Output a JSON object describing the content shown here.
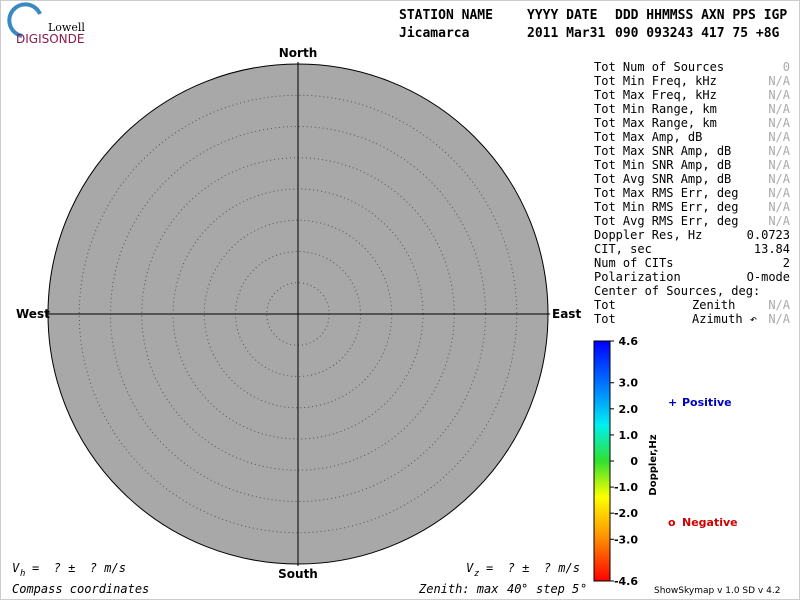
{
  "logo": {
    "top": "Lowell",
    "bottom": "DIGISONDE"
  },
  "header": {
    "columns": [
      "STATION NAME",
      "YYYY DATE",
      "DDD HHMMSS AXN PPS IGP"
    ],
    "values": [
      "Jicamarca",
      "2011 Mar31",
      "090 093243 417  75 +8G"
    ]
  },
  "directions": {
    "north": "North",
    "south": "South",
    "east": "East",
    "west": "West"
  },
  "zenith": {
    "label": "Zenith: max",
    "max": 40,
    "unit": "°",
    "step_label": "step",
    "step": 5
  },
  "stats": [
    [
      "Tot Num of Sources",
      "0"
    ],
    [
      "Tot Min Freq, kHz",
      "N/A"
    ],
    [
      "Tot Max Freq, kHz",
      "N/A"
    ],
    [
      "Tot Min Range, km",
      "N/A"
    ],
    [
      "Tot Max Range, km",
      "N/A"
    ],
    [
      "Tot Max Amp, dB",
      "N/A"
    ],
    [
      "Tot Max SNR Amp, dB",
      "N/A"
    ],
    [
      "Tot Min SNR Amp, dB",
      "N/A"
    ],
    [
      "Tot Avg SNR Amp, dB",
      "N/A"
    ],
    [
      "Tot Max RMS Err, deg",
      "N/A"
    ],
    [
      "Tot Min RMS Err, deg",
      "N/A"
    ],
    [
      "Tot Avg RMS Err, deg",
      "N/A"
    ],
    [
      "Doppler Res, Hz",
      "0.0723"
    ],
    [
      "CIT, sec",
      "13.84"
    ],
    [
      "Num of CITs",
      "2"
    ],
    [
      "Polarization",
      "O-mode"
    ]
  ],
  "center": {
    "title": "Center of Sources, deg:",
    "rows": [
      [
        "Tot",
        "Zenith",
        "N/A"
      ],
      [
        "Tot",
        "Azimuth ↶",
        "N/A"
      ]
    ]
  },
  "colorbar": {
    "label": "Doppler,Hz",
    "lim": [
      -4.6,
      4.6
    ],
    "ticks": [
      4.6,
      {
        "value": 3,
        "label": "3.0"
      },
      {
        "value": 2,
        "label": "2.0"
      },
      {
        "value": 1,
        "label": "1.0"
      },
      0,
      {
        "value": -1,
        "label": "-1.0"
      },
      {
        "value": -2,
        "label": "-2.0"
      },
      {
        "value": -3,
        "label": "-3.0"
      },
      -4.6
    ]
  },
  "legend": {
    "positive": {
      "symbol": "+",
      "text": "Positive"
    },
    "negative": {
      "symbol": "o",
      "text": "Negative"
    }
  },
  "velocity": {
    "vh": {
      "symbol": "V",
      "sub": "h",
      "text": "=  ? ±  ? m/s"
    },
    "vz": {
      "symbol": "V",
      "sub": "z",
      "text": "=  ? ±  ? m/s"
    }
  },
  "footer": {
    "left": "Compass coordinates",
    "right": "ShowSkymap v 1.0  SD v 4.2"
  }
}
